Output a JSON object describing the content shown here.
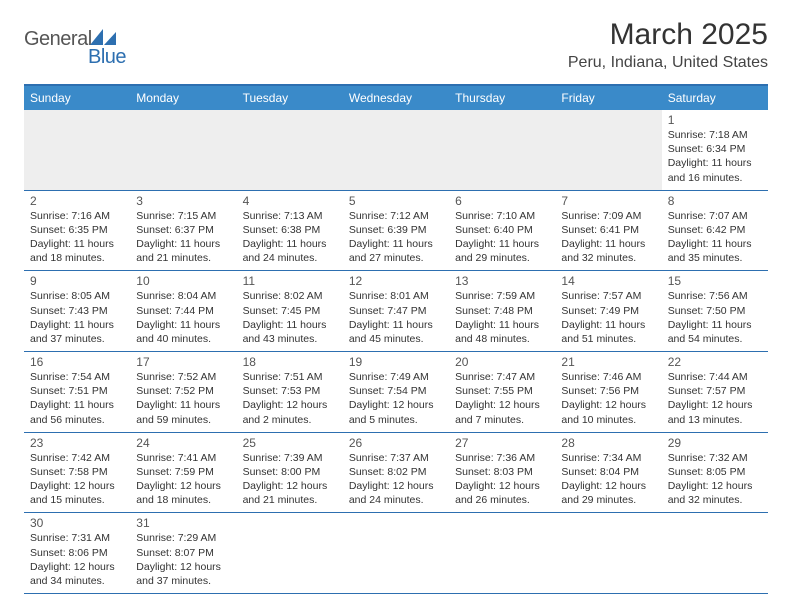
{
  "logo": {
    "general": "General",
    "blue": "Blue",
    "shape_color": "#2d6fb0"
  },
  "title": "March 2025",
  "location": "Peru, Indiana, United States",
  "header_bg": "#3a8ac9",
  "header_border": "#2d6fb0",
  "days_of_week": [
    "Sunday",
    "Monday",
    "Tuesday",
    "Wednesday",
    "Thursday",
    "Friday",
    "Saturday"
  ],
  "weeks": [
    [
      null,
      null,
      null,
      null,
      null,
      null,
      {
        "n": "1",
        "sr": "7:18 AM",
        "ss": "6:34 PM",
        "dl": "11 hours and 16 minutes."
      }
    ],
    [
      {
        "n": "2",
        "sr": "7:16 AM",
        "ss": "6:35 PM",
        "dl": "11 hours and 18 minutes."
      },
      {
        "n": "3",
        "sr": "7:15 AM",
        "ss": "6:37 PM",
        "dl": "11 hours and 21 minutes."
      },
      {
        "n": "4",
        "sr": "7:13 AM",
        "ss": "6:38 PM",
        "dl": "11 hours and 24 minutes."
      },
      {
        "n": "5",
        "sr": "7:12 AM",
        "ss": "6:39 PM",
        "dl": "11 hours and 27 minutes."
      },
      {
        "n": "6",
        "sr": "7:10 AM",
        "ss": "6:40 PM",
        "dl": "11 hours and 29 minutes."
      },
      {
        "n": "7",
        "sr": "7:09 AM",
        "ss": "6:41 PM",
        "dl": "11 hours and 32 minutes."
      },
      {
        "n": "8",
        "sr": "7:07 AM",
        "ss": "6:42 PM",
        "dl": "11 hours and 35 minutes."
      }
    ],
    [
      {
        "n": "9",
        "sr": "8:05 AM",
        "ss": "7:43 PM",
        "dl": "11 hours and 37 minutes."
      },
      {
        "n": "10",
        "sr": "8:04 AM",
        "ss": "7:44 PM",
        "dl": "11 hours and 40 minutes."
      },
      {
        "n": "11",
        "sr": "8:02 AM",
        "ss": "7:45 PM",
        "dl": "11 hours and 43 minutes."
      },
      {
        "n": "12",
        "sr": "8:01 AM",
        "ss": "7:47 PM",
        "dl": "11 hours and 45 minutes."
      },
      {
        "n": "13",
        "sr": "7:59 AM",
        "ss": "7:48 PM",
        "dl": "11 hours and 48 minutes."
      },
      {
        "n": "14",
        "sr": "7:57 AM",
        "ss": "7:49 PM",
        "dl": "11 hours and 51 minutes."
      },
      {
        "n": "15",
        "sr": "7:56 AM",
        "ss": "7:50 PM",
        "dl": "11 hours and 54 minutes."
      }
    ],
    [
      {
        "n": "16",
        "sr": "7:54 AM",
        "ss": "7:51 PM",
        "dl": "11 hours and 56 minutes."
      },
      {
        "n": "17",
        "sr": "7:52 AM",
        "ss": "7:52 PM",
        "dl": "11 hours and 59 minutes."
      },
      {
        "n": "18",
        "sr": "7:51 AM",
        "ss": "7:53 PM",
        "dl": "12 hours and 2 minutes."
      },
      {
        "n": "19",
        "sr": "7:49 AM",
        "ss": "7:54 PM",
        "dl": "12 hours and 5 minutes."
      },
      {
        "n": "20",
        "sr": "7:47 AM",
        "ss": "7:55 PM",
        "dl": "12 hours and 7 minutes."
      },
      {
        "n": "21",
        "sr": "7:46 AM",
        "ss": "7:56 PM",
        "dl": "12 hours and 10 minutes."
      },
      {
        "n": "22",
        "sr": "7:44 AM",
        "ss": "7:57 PM",
        "dl": "12 hours and 13 minutes."
      }
    ],
    [
      {
        "n": "23",
        "sr": "7:42 AM",
        "ss": "7:58 PM",
        "dl": "12 hours and 15 minutes."
      },
      {
        "n": "24",
        "sr": "7:41 AM",
        "ss": "7:59 PM",
        "dl": "12 hours and 18 minutes."
      },
      {
        "n": "25",
        "sr": "7:39 AM",
        "ss": "8:00 PM",
        "dl": "12 hours and 21 minutes."
      },
      {
        "n": "26",
        "sr": "7:37 AM",
        "ss": "8:02 PM",
        "dl": "12 hours and 24 minutes."
      },
      {
        "n": "27",
        "sr": "7:36 AM",
        "ss": "8:03 PM",
        "dl": "12 hours and 26 minutes."
      },
      {
        "n": "28",
        "sr": "7:34 AM",
        "ss": "8:04 PM",
        "dl": "12 hours and 29 minutes."
      },
      {
        "n": "29",
        "sr": "7:32 AM",
        "ss": "8:05 PM",
        "dl": "12 hours and 32 minutes."
      }
    ],
    [
      {
        "n": "30",
        "sr": "7:31 AM",
        "ss": "8:06 PM",
        "dl": "12 hours and 34 minutes."
      },
      {
        "n": "31",
        "sr": "7:29 AM",
        "ss": "8:07 PM",
        "dl": "12 hours and 37 minutes."
      },
      null,
      null,
      null,
      null,
      null
    ]
  ],
  "labels": {
    "sunrise": "Sunrise:",
    "sunset": "Sunset:",
    "daylight": "Daylight:"
  }
}
